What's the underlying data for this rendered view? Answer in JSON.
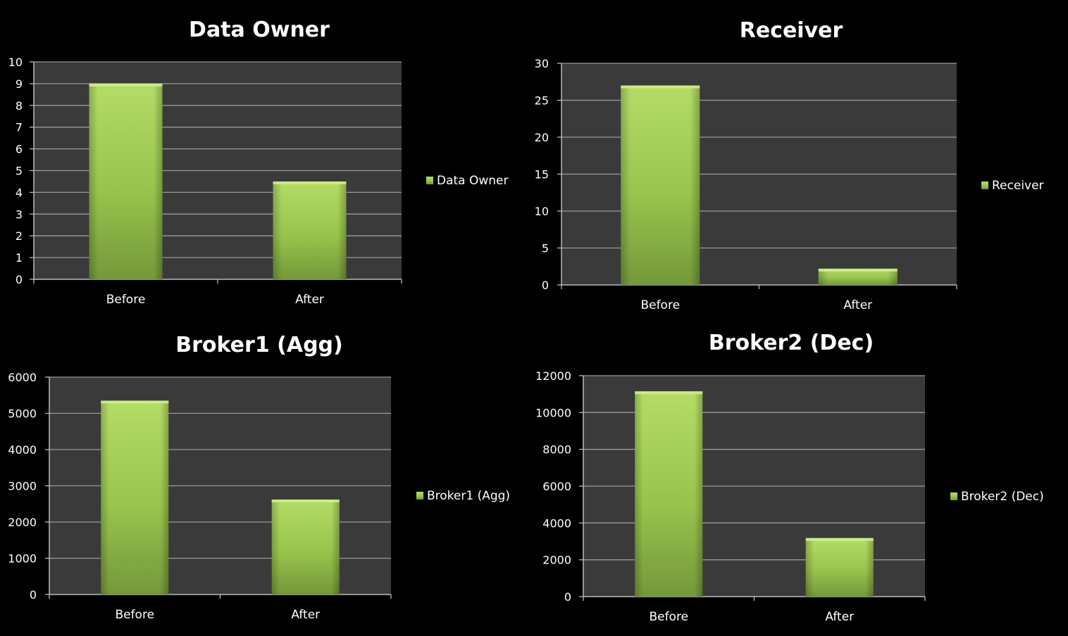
{
  "colors": {
    "background": "#000000",
    "plot_area": "#3a3a3a",
    "gridline": "#9a9a9a",
    "axis": "#bbbbbb",
    "bar_light": "#a9d35a",
    "bar_dark": "#7aa13a",
    "text": "#ffffff"
  },
  "chart_data": [
    {
      "type": "bar",
      "title": "Data Owner",
      "categories": [
        "Before",
        "After"
      ],
      "series": [
        {
          "name": "Data Owner",
          "values": [
            9,
            4.5
          ]
        }
      ],
      "ylim": [
        0,
        10
      ],
      "yticks": [
        0,
        1,
        2,
        3,
        4,
        5,
        6,
        7,
        8,
        9,
        10
      ],
      "grid": true,
      "legend": "right"
    },
    {
      "type": "bar",
      "title": "Receiver",
      "categories": [
        "Before",
        "After"
      ],
      "series": [
        {
          "name": "Receiver",
          "values": [
            27,
            2.2
          ]
        }
      ],
      "ylim": [
        0,
        30
      ],
      "yticks": [
        0,
        5,
        10,
        15,
        20,
        25,
        30
      ],
      "grid": true,
      "legend": "right"
    },
    {
      "type": "bar",
      "title": "Broker1 (Agg)",
      "categories": [
        "Before",
        "After"
      ],
      "series": [
        {
          "name": "Broker1 (Agg)",
          "values": [
            5350,
            2620
          ]
        }
      ],
      "ylim": [
        0,
        6000
      ],
      "yticks": [
        0,
        1000,
        2000,
        3000,
        4000,
        5000,
        6000
      ],
      "grid": true,
      "legend": "right"
    },
    {
      "type": "bar",
      "title": "Broker2 (Dec)",
      "categories": [
        "Before",
        "After"
      ],
      "series": [
        {
          "name": "Broker2 (Dec)",
          "values": [
            11150,
            3180
          ]
        }
      ],
      "ylim": [
        0,
        12000
      ],
      "yticks": [
        0,
        2000,
        4000,
        6000,
        8000,
        10000,
        12000
      ],
      "grid": true,
      "legend": "right"
    }
  ]
}
